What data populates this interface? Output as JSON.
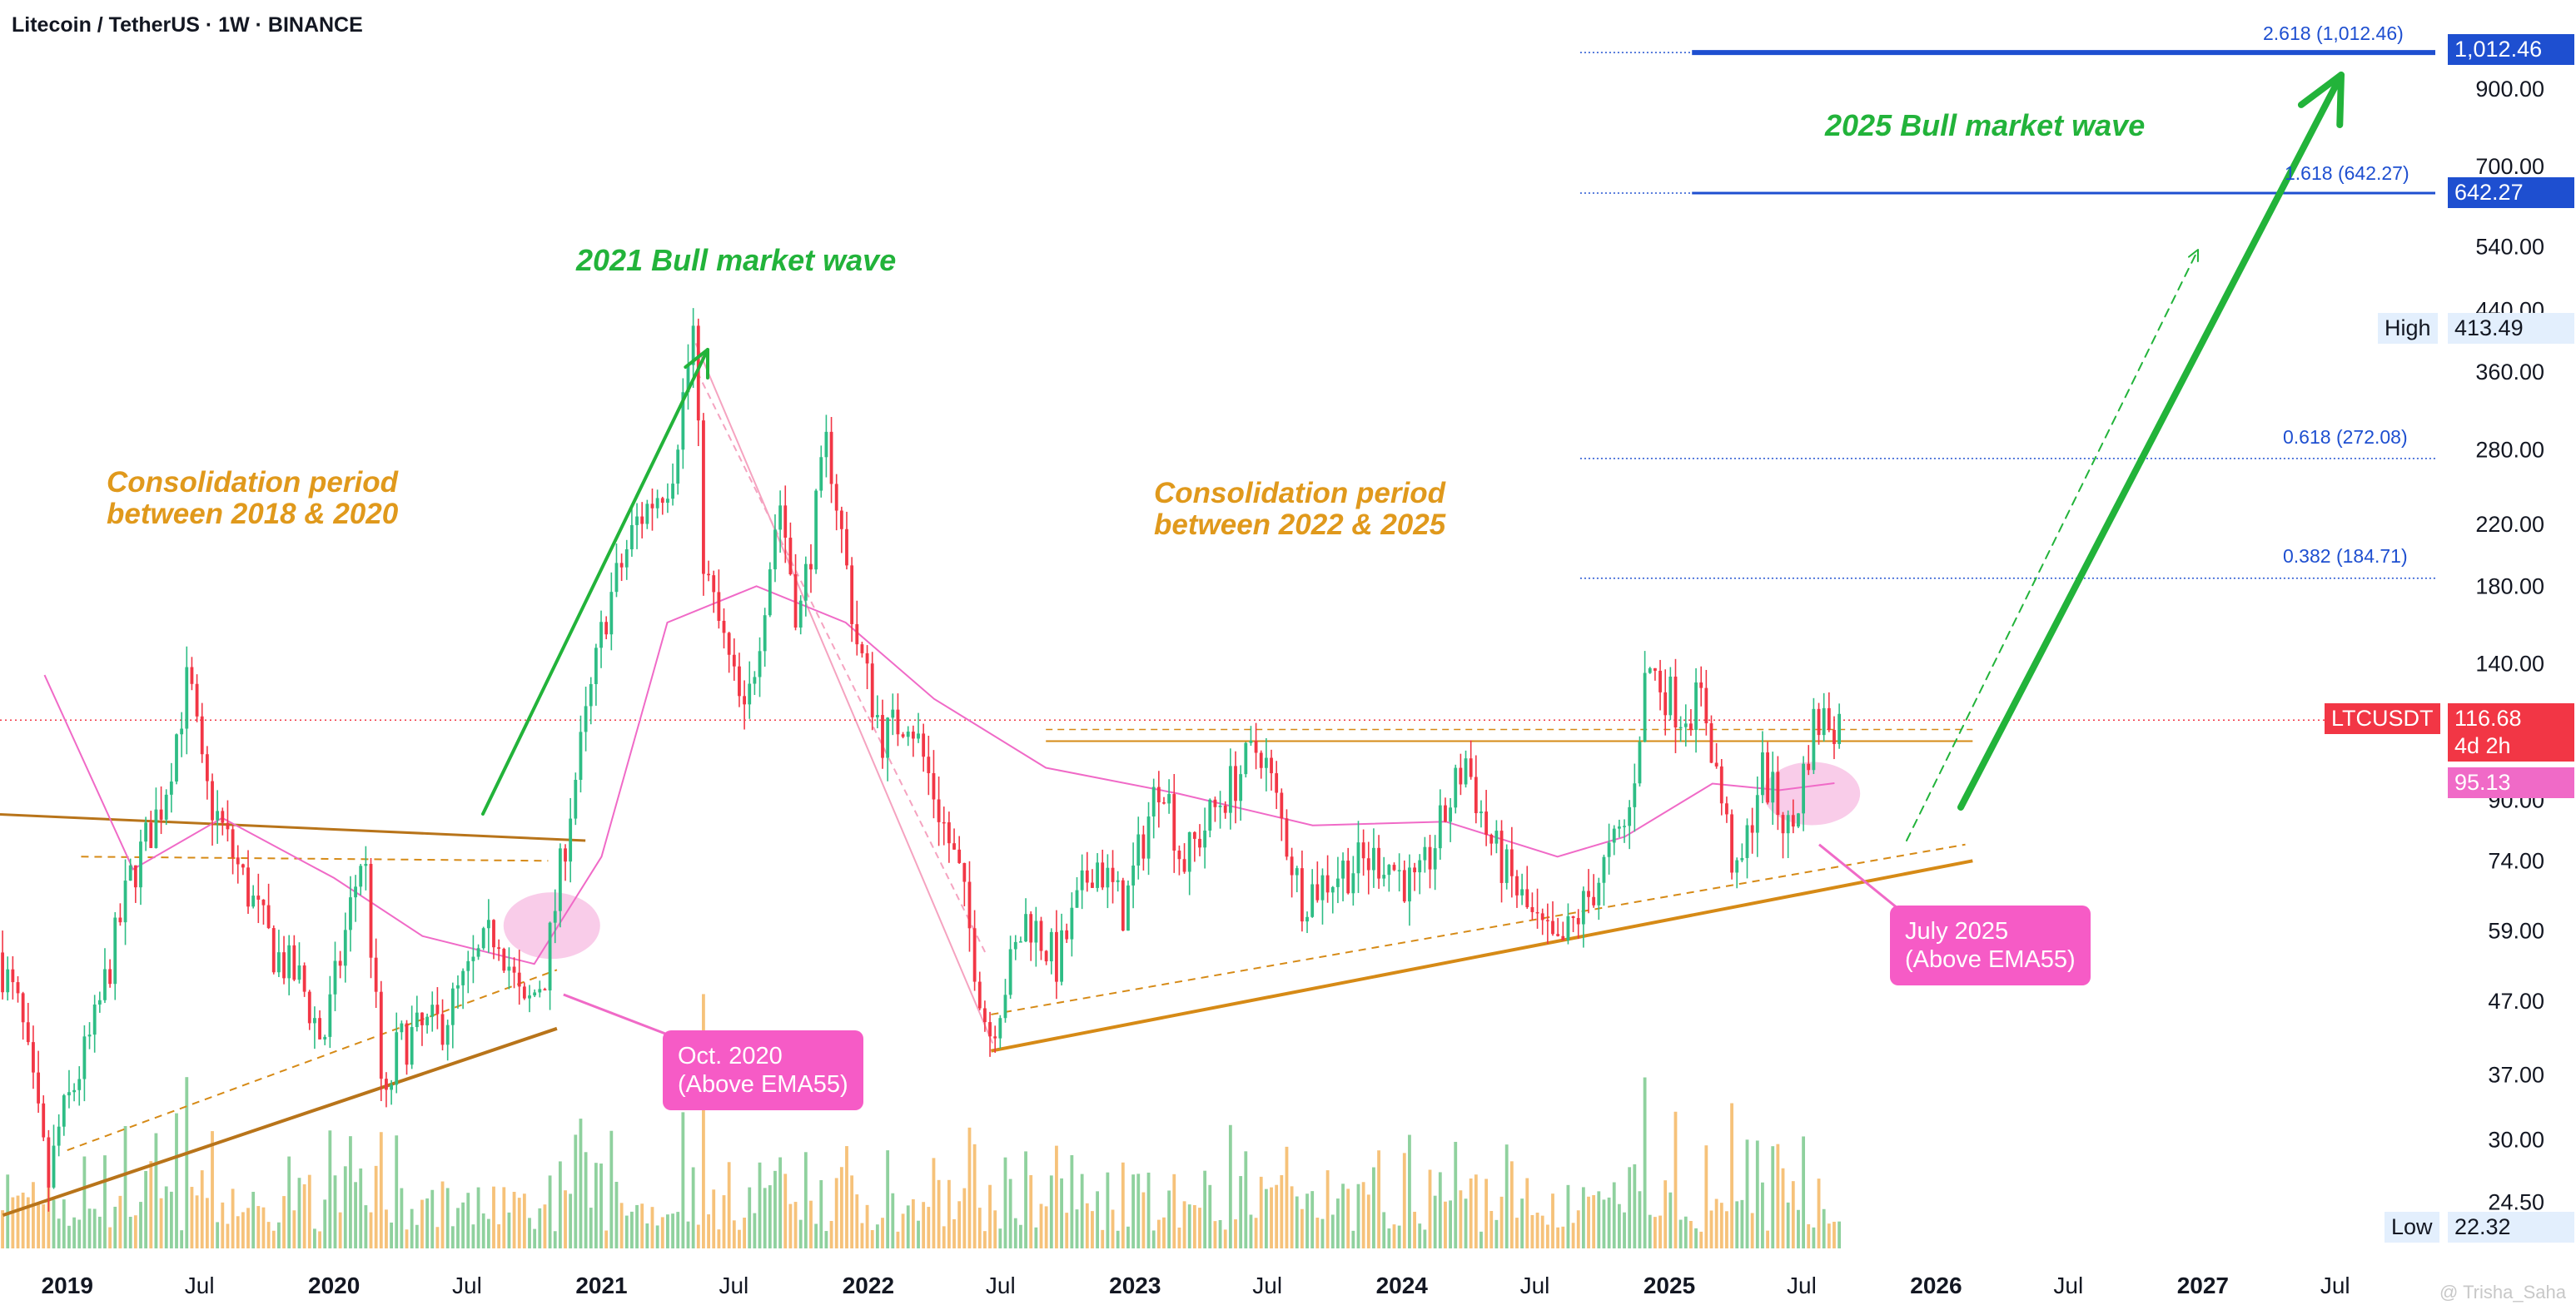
{
  "header": {
    "title": "Litecoin / TetherUS · 1W · BINANCE"
  },
  "annotations": {
    "bull_2021": "2021 Bull market wave",
    "bull_2025": "2025 Bull market wave",
    "consolidation_1_line1": "Consolidation period",
    "consolidation_1_line2": "between 2018 & 2020",
    "consolidation_2_line1": "Consolidation period",
    "consolidation_2_line2": "between 2022 & 2025",
    "callout_oct2020_line1": "Oct. 2020",
    "callout_oct2020_line2": "(Above EMA55)",
    "callout_jul2025_line1": "July 2025",
    "callout_jul2025_line2": "(Above EMA55)"
  },
  "price_tags": {
    "fib_2618_label": "2.618 (1,012.46)",
    "fib_2618_value": "1,012.46",
    "fib_1618_label": "1.618 (642.27)",
    "fib_1618_value": "642.27",
    "fib_0618_label": "0.618 (272.08)",
    "fib_0382_label": "0.382 (184.71)",
    "high_label": "High",
    "high_value": "413.49",
    "low_label": "Low",
    "low_value": "22.32",
    "symbol": "LTCUSDT",
    "last_price": "116.68",
    "countdown": "4d 2h",
    "ema_value": "95.13"
  },
  "watermark": "@ Trisha_Saha",
  "colors": {
    "up": "#26a69a",
    "up_candle": "#2ebd85",
    "down": "#f23645",
    "ema": "#f06ac7",
    "orange": "#d68a16",
    "fib_blue": "#1e4fd0",
    "green_arrow": "#22b33a",
    "vol_up": "#8fd19e",
    "vol_down": "#f6c27a"
  },
  "chart_data": {
    "type": "candlestick",
    "title": "Litecoin / TetherUS · 1W · BINANCE",
    "scale": "log",
    "ylim": [
      20,
      1200
    ],
    "y_ticks": [
      24.5,
      30,
      37,
      47,
      59,
      74,
      90,
      140,
      180,
      220,
      280,
      360,
      440,
      540,
      700,
      900
    ],
    "y_tick_labels": [
      "24.50",
      "30.00",
      "37.00",
      "47.00",
      "59.00",
      "74.00",
      "90.00",
      "140.00",
      "180.00",
      "220.00",
      "280.00",
      "360.00",
      "440.00",
      "540.00",
      "700.00",
      "900.00"
    ],
    "x_range": [
      "2018-10-01",
      "2027-11-15"
    ],
    "x_ticks": [
      {
        "date": "2019-01-01",
        "label": "2019",
        "bold": true
      },
      {
        "date": "2019-07-01",
        "label": "Jul",
        "bold": false
      },
      {
        "date": "2020-01-01",
        "label": "2020",
        "bold": true
      },
      {
        "date": "2020-07-01",
        "label": "Jul",
        "bold": false
      },
      {
        "date": "2021-01-01",
        "label": "2021",
        "bold": true
      },
      {
        "date": "2021-07-01",
        "label": "Jul",
        "bold": false
      },
      {
        "date": "2022-01-01",
        "label": "2022",
        "bold": true
      },
      {
        "date": "2022-07-01",
        "label": "Jul",
        "bold": false
      },
      {
        "date": "2023-01-01",
        "label": "2023",
        "bold": true
      },
      {
        "date": "2023-07-01",
        "label": "Jul",
        "bold": false
      },
      {
        "date": "2024-01-01",
        "label": "2024",
        "bold": true
      },
      {
        "date": "2024-07-01",
        "label": "Jul",
        "bold": false
      },
      {
        "date": "2025-01-01",
        "label": "2025",
        "bold": true
      },
      {
        "date": "2025-07-01",
        "label": "Jul",
        "bold": false
      },
      {
        "date": "2026-01-01",
        "label": "2026",
        "bold": true
      },
      {
        "date": "2026-07-01",
        "label": "Jul",
        "bold": false
      },
      {
        "date": "2027-01-01",
        "label": "2027",
        "bold": true
      },
      {
        "date": "2027-07-01",
        "label": "Jul",
        "bold": false
      }
    ],
    "price_path": [
      [
        "2018-10-01",
        55
      ],
      [
        "2018-11-01",
        45
      ],
      [
        "2018-12-10",
        26
      ],
      [
        "2018-12-24",
        31
      ],
      [
        "2019-02-10",
        43
      ],
      [
        "2019-04-01",
        70
      ],
      [
        "2019-05-15",
        90
      ],
      [
        "2019-06-20",
        135
      ],
      [
        "2019-07-10",
        95
      ],
      [
        "2019-09-01",
        70
      ],
      [
        "2019-10-15",
        55
      ],
      [
        "2019-11-20",
        50
      ],
      [
        "2019-12-20",
        41
      ],
      [
        "2020-02-14",
        78
      ],
      [
        "2020-03-13",
        32
      ],
      [
        "2020-04-01",
        41
      ],
      [
        "2020-06-01",
        44
      ],
      [
        "2020-08-15",
        60
      ],
      [
        "2020-09-20",
        45
      ],
      [
        "2020-10-20",
        52
      ],
      [
        "2020-11-20",
        85
      ],
      [
        "2021-01-10",
        165
      ],
      [
        "2021-02-20",
        220
      ],
      [
        "2021-04-10",
        260
      ],
      [
        "2021-05-10",
        410
      ],
      [
        "2021-05-25",
        190
      ],
      [
        "2021-07-20",
        115
      ],
      [
        "2021-09-05",
        240
      ],
      [
        "2021-10-01",
        160
      ],
      [
        "2021-11-10",
        290
      ],
      [
        "2021-12-20",
        150
      ],
      [
        "2022-01-25",
        110
      ],
      [
        "2022-03-01",
        120
      ],
      [
        "2022-05-10",
        70
      ],
      [
        "2022-06-18",
        42
      ],
      [
        "2022-08-10",
        62
      ],
      [
        "2022-09-20",
        53
      ],
      [
        "2022-11-10",
        75
      ],
      [
        "2022-12-20",
        63
      ],
      [
        "2023-02-10",
        100
      ],
      [
        "2023-03-10",
        73
      ],
      [
        "2023-05-01",
        90
      ],
      [
        "2023-06-25",
        108
      ],
      [
        "2023-08-20",
        66
      ],
      [
        "2023-10-15",
        72
      ],
      [
        "2023-12-10",
        75
      ],
      [
        "2024-01-25",
        67
      ],
      [
        "2024-04-01",
        103
      ],
      [
        "2024-05-01",
        80
      ],
      [
        "2024-07-05",
        60
      ],
      [
        "2024-08-05",
        55
      ],
      [
        "2024-09-20",
        67
      ],
      [
        "2024-11-10",
        85
      ],
      [
        "2024-12-05",
        140
      ],
      [
        "2025-01-20",
        120
      ],
      [
        "2025-02-20",
        125
      ],
      [
        "2025-03-15",
        92
      ],
      [
        "2025-04-08",
        68
      ],
      [
        "2025-05-10",
        100
      ],
      [
        "2025-06-20",
        80
      ],
      [
        "2025-07-20",
        115
      ],
      [
        "2025-08-10",
        118
      ],
      [
        "2025-08-18",
        116.68
      ]
    ],
    "ema_path": [
      [
        "2018-12-01",
        135
      ],
      [
        "2019-04-01",
        72
      ],
      [
        "2019-08-01",
        85
      ],
      [
        "2020-01-01",
        70
      ],
      [
        "2020-05-01",
        58
      ],
      [
        "2020-10-01",
        53
      ],
      [
        "2021-01-01",
        75
      ],
      [
        "2021-04-01",
        160
      ],
      [
        "2021-08-01",
        180
      ],
      [
        "2021-12-01",
        160
      ],
      [
        "2022-04-01",
        125
      ],
      [
        "2022-09-01",
        100
      ],
      [
        "2023-03-01",
        92
      ],
      [
        "2023-09-01",
        83
      ],
      [
        "2024-03-01",
        84
      ],
      [
        "2024-08-01",
        75
      ],
      [
        "2024-11-01",
        80
      ],
      [
        "2025-03-01",
        95
      ],
      [
        "2025-06-01",
        93
      ],
      [
        "2025-08-15",
        95.13
      ]
    ],
    "levels": [
      {
        "name": "2.618",
        "price": 1012.46
      },
      {
        "name": "1.618",
        "price": 642.27
      },
      {
        "name": "0.618",
        "price": 272.08
      },
      {
        "name": "0.382",
        "price": 184.71
      },
      {
        "name": "last",
        "price": 116.68
      },
      {
        "name": "resistance",
        "price": 109
      }
    ],
    "high": 413.49,
    "low": 22.32,
    "last_price": 116.68,
    "ema55": 95.13,
    "grid": false,
    "legend": "none"
  }
}
